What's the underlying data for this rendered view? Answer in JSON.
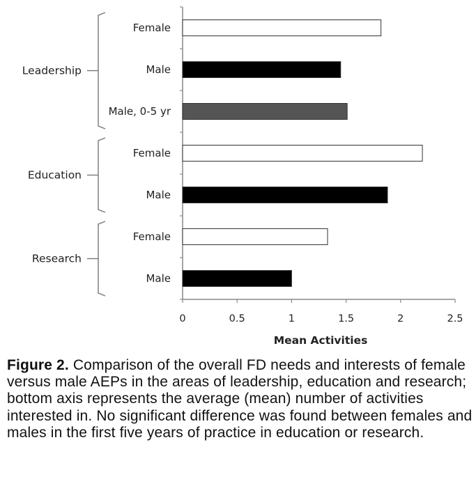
{
  "colors": {
    "female": "#ffffff",
    "male": "#000000",
    "male_0_5_yr": "#555555",
    "bar_outline": "#333333",
    "axis": "#888888",
    "bracket": "#777777"
  },
  "chart_data": {
    "type": "bar",
    "orientation": "horizontal",
    "title": "",
    "xlabel": "Mean Activities",
    "ylabel": "",
    "xlim": [
      0,
      2.5
    ],
    "xticks": [
      "0",
      "0.5",
      "1",
      "1.5",
      "2",
      "2.5"
    ],
    "grid": false,
    "legend": "none",
    "groups": [
      {
        "name": "Leadership",
        "bars": [
          {
            "label": "Female",
            "value": 1.82,
            "color": "female"
          },
          {
            "label": "Male",
            "value": 1.45,
            "color": "male"
          },
          {
            "label": "Male, 0-5 yr",
            "value": 1.51,
            "color": "male_0_5_yr"
          }
        ]
      },
      {
        "name": "Education",
        "bars": [
          {
            "label": "Female",
            "value": 2.2,
            "color": "female"
          },
          {
            "label": "Male",
            "value": 1.88,
            "color": "male"
          }
        ]
      },
      {
        "name": "Research",
        "bars": [
          {
            "label": "Female",
            "value": 1.33,
            "color": "female"
          },
          {
            "label": "Male",
            "value": 1.0,
            "color": "male"
          }
        ]
      }
    ]
  },
  "caption": {
    "figure_label": "Figure 2.",
    "text": " Comparison of the overall FD needs and interests of female versus male AEPs in the areas of leadership, education and research; bottom axis represents the average (mean) number of activities interested in. No significant difference was found between females and males in the first five years of practice in education or research."
  }
}
